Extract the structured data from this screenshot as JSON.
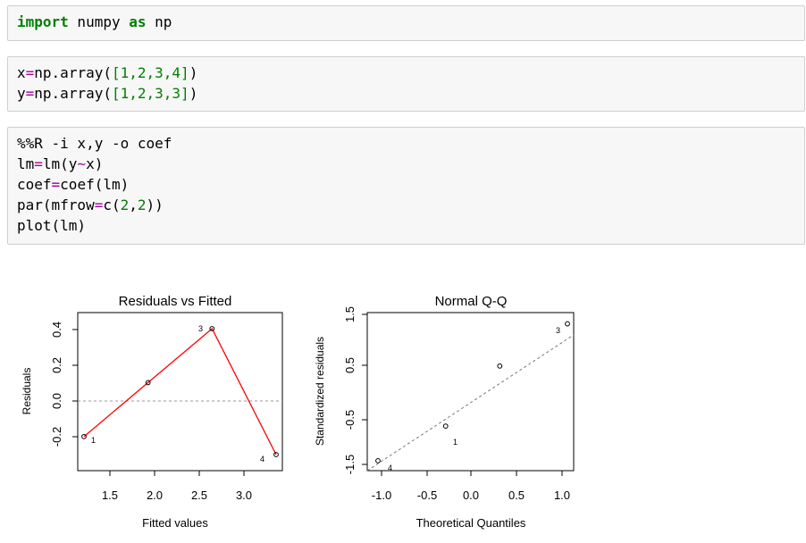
{
  "cells": [
    {
      "lines": [
        [
          [
            "kw",
            "import"
          ],
          [
            "t",
            " numpy "
          ],
          [
            "kw",
            "as"
          ],
          [
            "t",
            " np"
          ]
        ]
      ]
    },
    {
      "lines": [
        [
          [
            "t",
            "x"
          ],
          [
            "op",
            "="
          ],
          [
            "t",
            "np.array("
          ],
          [
            "num",
            "[1,2,3,4]"
          ],
          [
            "t",
            ")"
          ]
        ],
        [
          [
            "t",
            "y"
          ],
          [
            "op",
            "="
          ],
          [
            "t",
            "np.array("
          ],
          [
            "num",
            "[1,2,3,3]"
          ],
          [
            "t",
            ")"
          ]
        ]
      ]
    },
    {
      "lines": [
        [
          [
            "t",
            "%%R -i x,y -o coef"
          ]
        ],
        [
          [
            "t",
            "lm"
          ],
          [
            "op",
            "="
          ],
          [
            "t",
            "lm(y"
          ],
          [
            "op",
            "~"
          ],
          [
            "t",
            "x)"
          ]
        ],
        [
          [
            "t",
            "coef"
          ],
          [
            "op",
            "="
          ],
          [
            "t",
            "coef(lm)"
          ]
        ],
        [
          [
            "t",
            "par(mfrow"
          ],
          [
            "op",
            "="
          ],
          [
            "t",
            "c("
          ],
          [
            "num",
            "2"
          ],
          [
            "t",
            ","
          ],
          [
            "num",
            "2"
          ],
          [
            "t",
            "))"
          ]
        ],
        [
          [
            "t",
            "plot(lm)"
          ]
        ]
      ]
    }
  ],
  "plots": {
    "residuals_vs_fitted": {
      "title": "Residuals vs Fitted",
      "xlabel": "Fitted values",
      "ylabel": "Residuals",
      "x_ticks": [
        "1.5",
        "2.0",
        "2.5",
        "3.0"
      ],
      "y_ticks": [
        "-0.2",
        "0.0",
        "0.2",
        "0.4"
      ],
      "point_labels": [
        "1",
        "3",
        "4"
      ]
    },
    "normal_qq": {
      "title": "Normal Q-Q",
      "xlabel": "Theoretical Quantiles",
      "ylabel": "Standardized residuals",
      "x_ticks": [
        "-1.0",
        "-0.5",
        "0.0",
        "0.5",
        "1.0"
      ],
      "y_ticks": [
        "-1.5",
        "-0.5",
        "0.5",
        "1.5"
      ],
      "point_labels": [
        "1",
        "3",
        "4"
      ]
    }
  },
  "chart_data": [
    {
      "type": "line",
      "title": "Residuals vs Fitted",
      "xlabel": "Fitted values",
      "ylabel": "Residuals",
      "x": [
        1.2,
        1.9,
        2.6,
        3.3
      ],
      "y": [
        -0.2,
        0.1,
        0.4,
        -0.3
      ],
      "xlim": [
        1.2,
        3.3
      ],
      "ylim": [
        -0.3,
        0.4
      ],
      "reference_line_y": 0,
      "smoother_color": "#ff0000"
    },
    {
      "type": "scatter",
      "title": "Normal Q-Q",
      "xlabel": "Theoretical Quantiles",
      "ylabel": "Standardized residuals",
      "x": [
        -1.05,
        -0.3,
        0.3,
        1.05
      ],
      "y": [
        -1.41,
        -0.73,
        0.45,
        1.28
      ],
      "xlim": [
        -1.05,
        1.05
      ],
      "ylim": [
        -1.5,
        1.5
      ],
      "reference_line": "dashed"
    }
  ]
}
